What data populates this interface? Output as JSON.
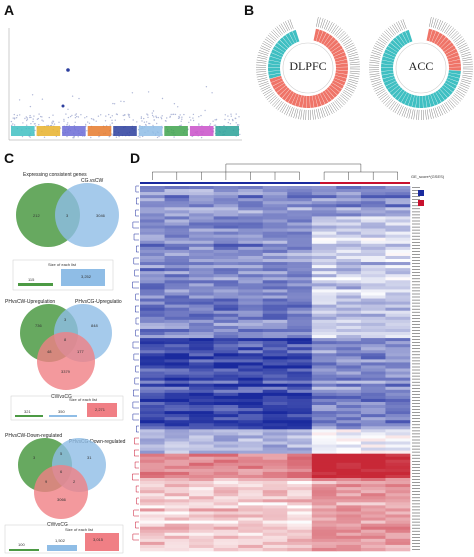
{
  "panels": {
    "a": "A",
    "b": "B",
    "c": "C",
    "d": "D"
  },
  "panel_b": {
    "left_label": "DLPFC",
    "right_label": "ACC",
    "left_colors": {
      "red": "#ef7468",
      "cyan": "#3fbfc2"
    },
    "right_colors": {
      "red": "#ef7468",
      "cyan": "#3fbfc2"
    }
  },
  "panel_c": {
    "venn1": {
      "left": "Expressing consistent genes",
      "right": "CG.vsCW",
      "values": [
        "212",
        "3",
        "3046"
      ]
    },
    "bar1": {
      "title": "Size of each list",
      "values": [
        "115",
        "3,252"
      ]
    },
    "venn2": {
      "left": "PHvsCW-Upregulation",
      "right": "PHvsCG-Upregulatio",
      "bottom": "CWvsCG",
      "values": [
        "736",
        "3",
        "848",
        "8",
        "48",
        "177",
        "3379"
      ]
    },
    "bar2": {
      "title": "Size of each list",
      "values": [
        "321",
        "350",
        "2,271"
      ]
    },
    "venn3": {
      "left": "PHvsCW-Down-regulated",
      "right": "PHvsCG-Down-regulated",
      "bottom": "CWvsCG",
      "values": [
        "3",
        "5",
        "31",
        "6",
        "9",
        "2",
        "3066"
      ]
    },
    "bar3": {
      "title": "Size of each list",
      "values": [
        "100",
        "1,502",
        "3,015"
      ]
    }
  },
  "panel_d": {
    "legend_title": "GE_score*(GSES)",
    "colors": {
      "high": "#c8102e",
      "mid": "#ffffff",
      "low": "#1a2a9e"
    }
  }
}
